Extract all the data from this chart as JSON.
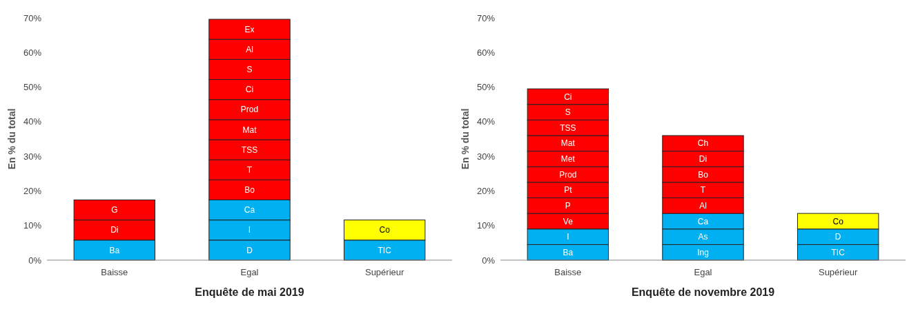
{
  "chart_data": [
    {
      "type": "bar",
      "stacked": true,
      "ylabel": "En % du total",
      "xlabel": "Enquête de mai 2019",
      "categories": [
        "Baisse",
        "Egal",
        "Supérieur"
      ],
      "ylim": [
        0,
        70
      ],
      "yticks": [
        {
          "value": 0,
          "label": "0%"
        },
        {
          "value": 10,
          "label": "10%"
        },
        {
          "value": 20,
          "label": "20%"
        },
        {
          "value": 30,
          "label": "30%"
        },
        {
          "value": 40,
          "label": "40%"
        },
        {
          "value": 50,
          "label": "50%"
        },
        {
          "value": 60,
          "label": "60%"
        },
        {
          "value": 70,
          "label": "70%"
        }
      ],
      "series": [
        {
          "values": [
            5.8,
            5.8,
            5.8
          ],
          "colors": [
            "#00b0f0",
            "#00b0f0",
            "#00b0f0"
          ],
          "value_labels": [
            "Ba",
            "D",
            "TIC"
          ]
        },
        {
          "values": [
            5.8,
            5.8,
            5.8
          ],
          "colors": [
            "#ff0000",
            "#00b0f0",
            "#ffff00"
          ],
          "value_labels": [
            "Di",
            "I",
            "Co"
          ]
        },
        {
          "values": [
            5.8,
            5.8,
            null
          ],
          "colors": [
            "#ff0000",
            "#00b0f0",
            null
          ],
          "value_labels": [
            "G",
            "Ca",
            null
          ]
        },
        {
          "values": [
            null,
            5.8,
            null
          ],
          "colors": [
            null,
            "#ff0000",
            null
          ],
          "value_labels": [
            null,
            "Bo",
            null
          ]
        },
        {
          "values": [
            null,
            5.8,
            null
          ],
          "colors": [
            null,
            "#ff0000",
            null
          ],
          "value_labels": [
            null,
            "T",
            null
          ]
        },
        {
          "values": [
            null,
            5.8,
            null
          ],
          "colors": [
            null,
            "#ff0000",
            null
          ],
          "value_labels": [
            null,
            "TSS",
            null
          ]
        },
        {
          "values": [
            null,
            5.8,
            null
          ],
          "colors": [
            null,
            "#ff0000",
            null
          ],
          "value_labels": [
            null,
            "Mat",
            null
          ]
        },
        {
          "values": [
            null,
            5.8,
            null
          ],
          "colors": [
            null,
            "#ff0000",
            null
          ],
          "value_labels": [
            null,
            "Prod",
            null
          ]
        },
        {
          "values": [
            null,
            5.8,
            null
          ],
          "colors": [
            null,
            "#ff0000",
            null
          ],
          "value_labels": [
            null,
            "Ci",
            null
          ]
        },
        {
          "values": [
            null,
            5.8,
            null
          ],
          "colors": [
            null,
            "#ff0000",
            null
          ],
          "value_labels": [
            null,
            "S",
            null
          ]
        },
        {
          "values": [
            null,
            5.8,
            null
          ],
          "colors": [
            null,
            "#ff0000",
            null
          ],
          "value_labels": [
            null,
            "Al",
            null
          ]
        },
        {
          "values": [
            null,
            5.8,
            null
          ],
          "colors": [
            null,
            "#ff0000",
            null
          ],
          "value_labels": [
            null,
            "Ex",
            null
          ]
        }
      ]
    },
    {
      "type": "bar",
      "stacked": true,
      "ylabel": "En % du total",
      "xlabel": "Enquête de novembre 2019",
      "categories": [
        "Baisse",
        "Egal",
        "Supérieur"
      ],
      "ylim": [
        0,
        70
      ],
      "yticks": [
        {
          "value": 0,
          "label": "0%"
        },
        {
          "value": 10,
          "label": "10%"
        },
        {
          "value": 20,
          "label": "20%"
        },
        {
          "value": 30,
          "label": "30%"
        },
        {
          "value": 40,
          "label": "40%"
        },
        {
          "value": 50,
          "label": "50%"
        },
        {
          "value": 60,
          "label": "60%"
        },
        {
          "value": 70,
          "label": "70%"
        }
      ],
      "series": [
        {
          "values": [
            4.5,
            4.5,
            4.5
          ],
          "colors": [
            "#00b0f0",
            "#00b0f0",
            "#00b0f0"
          ],
          "value_labels": [
            "Ba",
            "Ing",
            "TIC"
          ]
        },
        {
          "values": [
            4.5,
            4.5,
            4.5
          ],
          "colors": [
            "#00b0f0",
            "#00b0f0",
            "#00b0f0"
          ],
          "value_labels": [
            "I",
            "As",
            "D"
          ]
        },
        {
          "values": [
            4.5,
            4.5,
            4.5
          ],
          "colors": [
            "#ff0000",
            "#00b0f0",
            "#ffff00"
          ],
          "value_labels": [
            "Ve",
            "Ca",
            "Co"
          ]
        },
        {
          "values": [
            4.5,
            4.5,
            null
          ],
          "colors": [
            "#ff0000",
            "#ff0000",
            null
          ],
          "value_labels": [
            "P",
            "Al",
            null
          ]
        },
        {
          "values": [
            4.5,
            4.5,
            null
          ],
          "colors": [
            "#ff0000",
            "#ff0000",
            null
          ],
          "value_labels": [
            "Pt",
            "T",
            null
          ]
        },
        {
          "values": [
            4.5,
            4.5,
            null
          ],
          "colors": [
            "#ff0000",
            "#ff0000",
            null
          ],
          "value_labels": [
            "Prod",
            "Bo",
            null
          ]
        },
        {
          "values": [
            4.5,
            4.5,
            null
          ],
          "colors": [
            "#ff0000",
            "#ff0000",
            null
          ],
          "value_labels": [
            "Met",
            "Di",
            null
          ]
        },
        {
          "values": [
            4.5,
            4.5,
            null
          ],
          "colors": [
            "#ff0000",
            "#ff0000",
            null
          ],
          "value_labels": [
            "Mat",
            "Ch",
            null
          ]
        },
        {
          "values": [
            4.5,
            null,
            null
          ],
          "colors": [
            "#ff0000",
            null,
            null
          ],
          "value_labels": [
            "TSS",
            null,
            null
          ]
        },
        {
          "values": [
            4.5,
            null,
            null
          ],
          "colors": [
            "#ff0000",
            null,
            null
          ],
          "value_labels": [
            "S",
            null,
            null
          ]
        },
        {
          "values": [
            4.5,
            null,
            null
          ],
          "colors": [
            "#ff0000",
            null,
            null
          ],
          "value_labels": [
            "Ci",
            null,
            null
          ]
        }
      ]
    }
  ]
}
